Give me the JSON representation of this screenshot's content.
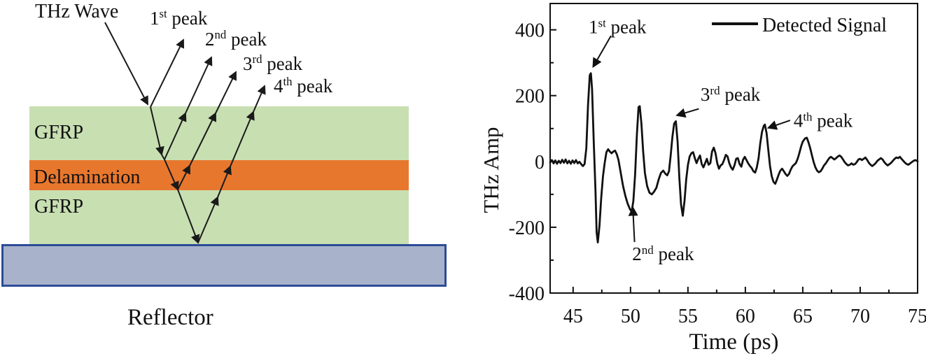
{
  "diagram": {
    "thz_wave_label": "THz Wave",
    "peak_labels": [
      {
        "pre": "1",
        "sup": "st",
        "post": " peak"
      },
      {
        "pre": "2",
        "sup": "nd",
        "post": " peak"
      },
      {
        "pre": "3",
        "sup": "rd",
        "post": " peak"
      },
      {
        "pre": "4",
        "sup": "th",
        "post": " peak"
      }
    ],
    "layers": {
      "gfrp_top_label": "GFRP",
      "delamination_label": "Delamination",
      "gfrp_bottom_label": "GFRP",
      "reflector_label": "Reflector"
    },
    "colors": {
      "gfrp": "#c8dfb2",
      "delamination": "#e8772e",
      "reflector_fill": "#a8b3cb",
      "reflector_border": "#2d4b97",
      "ray": "#1a1a1a"
    }
  },
  "chart_data": {
    "type": "line",
    "title": "",
    "xlabel": "Time (ps)",
    "ylabel": "THz Amp",
    "x_range": [
      43,
      75
    ],
    "y_range": [
      -400,
      480
    ],
    "x_ticks": [
      45,
      50,
      55,
      60,
      65,
      70,
      75
    ],
    "x_minor_ticks": [
      47.5,
      52.5,
      57.5,
      62.5,
      67.5,
      72.5
    ],
    "y_ticks": [
      400,
      200,
      0,
      -200,
      -400
    ],
    "y_minor_ticks": [
      300,
      100,
      -100,
      -300
    ],
    "grid": false,
    "line_color": "#111111",
    "legend": {
      "position": "top-right",
      "entries": [
        {
          "label": "Detected Signal",
          "color": "#111111"
        }
      ]
    },
    "annotations": [
      {
        "pre": "1",
        "sup": "st",
        "post": " peak",
        "label_t": 46.35,
        "label_amp": 390,
        "tail_t": 48.3,
        "tail_amp": 382,
        "tip_t": 46.75,
        "tip_amp": 288
      },
      {
        "pre": "2",
        "sup": "nd",
        "post": " peak",
        "label_t": 50.15,
        "label_amp": -300,
        "tail_t": 50.35,
        "tail_amp": -245,
        "tip_t": 50.2,
        "tip_amp": -140
      },
      {
        "pre": "3",
        "sup": "rd",
        "post": " peak",
        "label_t": 56.1,
        "label_amp": 185,
        "tail_t": 55.95,
        "tail_amp": 160,
        "tip_t": 54.05,
        "tip_amp": 140
      },
      {
        "pre": "4",
        "sup": "th",
        "post": " peak",
        "label_t": 64.2,
        "label_amp": 105,
        "tail_t": 63.9,
        "tail_amp": 125,
        "tip_t": 62.0,
        "tip_amp": 102
      }
    ],
    "series": [
      {
        "name": "Detected Signal",
        "points": [
          [
            43.0,
            -3
          ],
          [
            43.15,
            4
          ],
          [
            43.3,
            -6
          ],
          [
            43.45,
            3
          ],
          [
            43.6,
            -7
          ],
          [
            43.75,
            2
          ],
          [
            43.9,
            -5
          ],
          [
            44.05,
            5
          ],
          [
            44.2,
            -4
          ],
          [
            44.35,
            6
          ],
          [
            44.5,
            -6
          ],
          [
            44.65,
            2
          ],
          [
            44.8,
            -7
          ],
          [
            44.95,
            3
          ],
          [
            45.1,
            -5
          ],
          [
            45.25,
            4
          ],
          [
            45.4,
            -6
          ],
          [
            45.55,
            -1
          ],
          [
            45.7,
            -8
          ],
          [
            45.85,
            -14
          ],
          [
            46.0,
            -8
          ],
          [
            46.15,
            40
          ],
          [
            46.3,
            170
          ],
          [
            46.45,
            262
          ],
          [
            46.55,
            268
          ],
          [
            46.65,
            220
          ],
          [
            46.8,
            60
          ],
          [
            46.95,
            -90
          ],
          [
            47.05,
            -215
          ],
          [
            47.15,
            -246
          ],
          [
            47.3,
            -195
          ],
          [
            47.45,
            -110
          ],
          [
            47.6,
            -45
          ],
          [
            47.75,
            -5
          ],
          [
            47.9,
            28
          ],
          [
            48.05,
            37
          ],
          [
            48.2,
            30
          ],
          [
            48.35,
            25
          ],
          [
            48.5,
            30
          ],
          [
            48.65,
            33
          ],
          [
            48.8,
            22
          ],
          [
            48.95,
            5
          ],
          [
            49.15,
            -35
          ],
          [
            49.35,
            -75
          ],
          [
            49.55,
            -105
          ],
          [
            49.75,
            -128
          ],
          [
            49.95,
            -145
          ],
          [
            50.1,
            -152
          ],
          [
            50.25,
            -120
          ],
          [
            50.4,
            -40
          ],
          [
            50.55,
            80
          ],
          [
            50.7,
            165
          ],
          [
            50.8,
            168
          ],
          [
            50.95,
            115
          ],
          [
            51.1,
            30
          ],
          [
            51.25,
            -35
          ],
          [
            51.45,
            -75
          ],
          [
            51.65,
            -95
          ],
          [
            51.85,
            -100
          ],
          [
            52.05,
            -92
          ],
          [
            52.25,
            -80
          ],
          [
            52.45,
            -55
          ],
          [
            52.65,
            -35
          ],
          [
            52.85,
            -28
          ],
          [
            53.05,
            -38
          ],
          [
            53.2,
            -42
          ],
          [
            53.35,
            -30
          ],
          [
            53.5,
            20
          ],
          [
            53.65,
            75
          ],
          [
            53.8,
            115
          ],
          [
            53.95,
            122
          ],
          [
            54.1,
            60
          ],
          [
            54.25,
            -50
          ],
          [
            54.4,
            -130
          ],
          [
            54.55,
            -165
          ],
          [
            54.7,
            -120
          ],
          [
            54.85,
            -55
          ],
          [
            55.0,
            -10
          ],
          [
            55.15,
            15
          ],
          [
            55.3,
            25
          ],
          [
            55.45,
            28
          ],
          [
            55.6,
            10
          ],
          [
            55.75,
            -5
          ],
          [
            55.9,
            8
          ],
          [
            56.05,
            18
          ],
          [
            56.2,
            -8
          ],
          [
            56.35,
            -18
          ],
          [
            56.5,
            -5
          ],
          [
            56.65,
            8
          ],
          [
            56.8,
            -10
          ],
          [
            56.95,
            -5
          ],
          [
            57.1,
            30
          ],
          [
            57.25,
            42
          ],
          [
            57.4,
            25
          ],
          [
            57.55,
            -5
          ],
          [
            57.7,
            -22
          ],
          [
            57.85,
            -12
          ],
          [
            58.0,
            -8
          ],
          [
            58.15,
            5
          ],
          [
            58.3,
            20
          ],
          [
            58.45,
            15
          ],
          [
            58.6,
            -5
          ],
          [
            58.75,
            -18
          ],
          [
            58.9,
            -25
          ],
          [
            59.05,
            -12
          ],
          [
            59.2,
            8
          ],
          [
            59.35,
            10
          ],
          [
            59.5,
            -8
          ],
          [
            59.65,
            -16
          ],
          [
            59.8,
            5
          ],
          [
            59.95,
            14
          ],
          [
            60.1,
            4
          ],
          [
            60.25,
            -6
          ],
          [
            60.4,
            -14
          ],
          [
            60.55,
            -20
          ],
          [
            60.7,
            -30
          ],
          [
            60.85,
            -34
          ],
          [
            61.0,
            -18
          ],
          [
            61.15,
            10
          ],
          [
            61.3,
            55
          ],
          [
            61.45,
            90
          ],
          [
            61.6,
            108
          ],
          [
            61.7,
            112
          ],
          [
            61.85,
            85
          ],
          [
            62.0,
            35
          ],
          [
            62.15,
            -15
          ],
          [
            62.3,
            -45
          ],
          [
            62.45,
            -62
          ],
          [
            62.6,
            -68
          ],
          [
            62.75,
            -55
          ],
          [
            62.9,
            -40
          ],
          [
            63.05,
            -28
          ],
          [
            63.2,
            -22
          ],
          [
            63.35,
            -30
          ],
          [
            63.5,
            -38
          ],
          [
            63.65,
            -44
          ],
          [
            63.8,
            -38
          ],
          [
            63.95,
            -25
          ],
          [
            64.1,
            -15
          ],
          [
            64.25,
            -10
          ],
          [
            64.4,
            -5
          ],
          [
            64.55,
            8
          ],
          [
            64.7,
            25
          ],
          [
            64.85,
            45
          ],
          [
            65.0,
            60
          ],
          [
            65.2,
            70
          ],
          [
            65.35,
            72
          ],
          [
            65.5,
            58
          ],
          [
            65.65,
            40
          ],
          [
            65.8,
            18
          ],
          [
            65.95,
            -2
          ],
          [
            66.1,
            -18
          ],
          [
            66.25,
            -28
          ],
          [
            66.4,
            -33
          ],
          [
            66.55,
            -30
          ],
          [
            66.7,
            -22
          ],
          [
            66.85,
            -12
          ],
          [
            67.0,
            -6
          ],
          [
            67.15,
            2
          ],
          [
            67.3,
            10
          ],
          [
            67.45,
            14
          ],
          [
            67.6,
            10
          ],
          [
            67.75,
            6
          ],
          [
            67.9,
            10
          ],
          [
            68.05,
            15
          ],
          [
            68.2,
            18
          ],
          [
            68.35,
            14
          ],
          [
            68.5,
            6
          ],
          [
            68.65,
            -2
          ],
          [
            68.8,
            -8
          ],
          [
            68.95,
            -12
          ],
          [
            69.1,
            -10
          ],
          [
            69.25,
            -6
          ],
          [
            69.4,
            -10
          ],
          [
            69.55,
            -8
          ],
          [
            69.7,
            -2
          ],
          [
            69.85,
            6
          ],
          [
            70.0,
            8
          ],
          [
            70.15,
            4
          ],
          [
            70.3,
            8
          ],
          [
            70.45,
            12
          ],
          [
            70.6,
            5
          ],
          [
            70.75,
            -4
          ],
          [
            70.9,
            -10
          ],
          [
            71.05,
            -14
          ],
          [
            71.2,
            -10
          ],
          [
            71.35,
            -5
          ],
          [
            71.5,
            2
          ],
          [
            71.65,
            6
          ],
          [
            71.8,
            10
          ],
          [
            71.95,
            6
          ],
          [
            72.1,
            -2
          ],
          [
            72.25,
            -8
          ],
          [
            72.4,
            -12
          ],
          [
            72.55,
            -8
          ],
          [
            72.7,
            -4
          ],
          [
            72.85,
            2
          ],
          [
            73.0,
            8
          ],
          [
            73.15,
            12
          ],
          [
            73.3,
            10
          ],
          [
            73.45,
            14
          ],
          [
            73.6,
            8
          ],
          [
            73.75,
            2
          ],
          [
            73.9,
            -4
          ],
          [
            74.05,
            -8
          ],
          [
            74.2,
            -10
          ],
          [
            74.35,
            -6
          ],
          [
            74.5,
            -2
          ],
          [
            74.65,
            2
          ],
          [
            74.8,
            4
          ],
          [
            74.95,
            2
          ],
          [
            75.0,
            0
          ]
        ]
      }
    ]
  }
}
